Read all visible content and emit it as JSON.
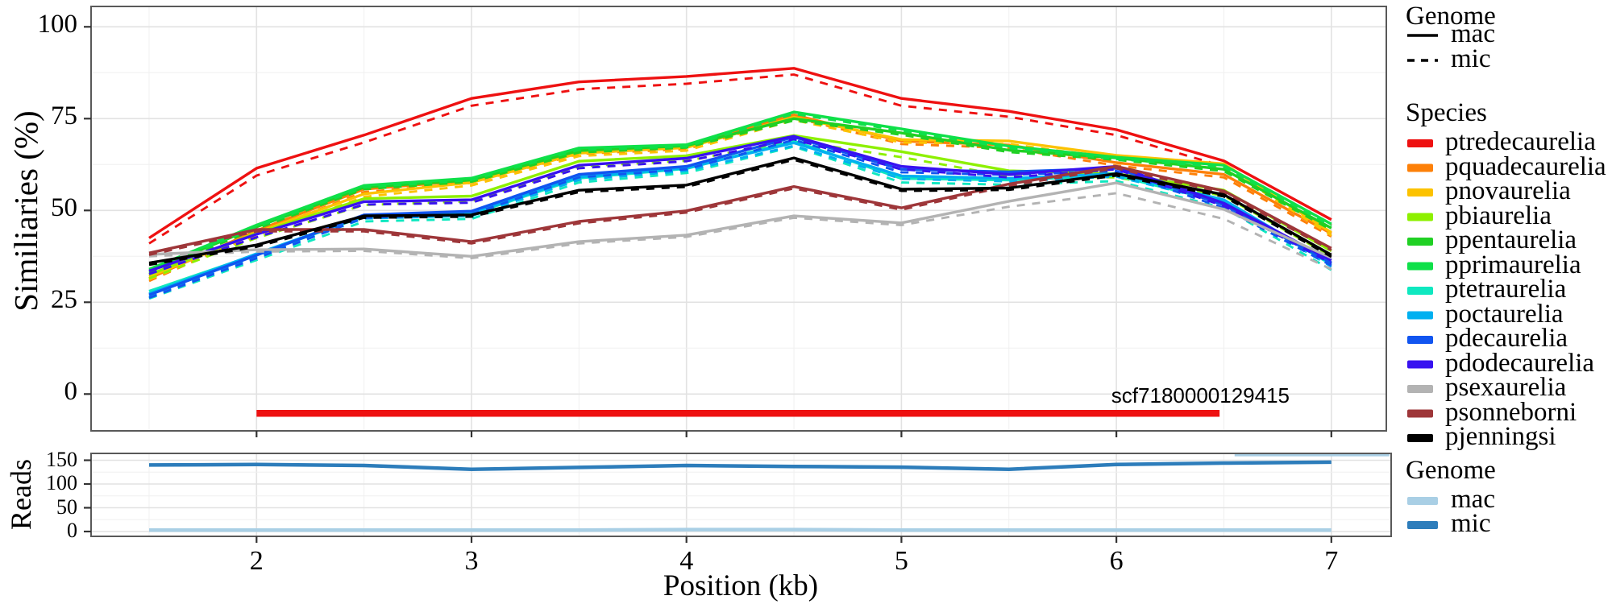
{
  "chart_data": [
    {
      "type": "line",
      "title": "",
      "ylabel": "Similiaries (%)",
      "xlabel": "Position (kb)",
      "x_ticks": [
        "2",
        "3",
        "4",
        "5",
        "6",
        "7"
      ],
      "y_ticks": [
        "0",
        "25",
        "50",
        "75",
        "100"
      ],
      "xlim": [
        1.23,
        7.26
      ],
      "ylim": [
        -9,
        105
      ],
      "grid": "major+minor",
      "legend_position": "right",
      "x": [
        1.5,
        2,
        2.5,
        3,
        3.5,
        4,
        4.5,
        5,
        5.5,
        6,
        6.5,
        7
      ],
      "series": [
        {
          "name": "ptredecaurelia",
          "color": "#ee1111",
          "mac": [
            42.5,
            61.5,
            70.5,
            80.5,
            85,
            86.5,
            88.7,
            80.5,
            77,
            72,
            63.5,
            47.5
          ],
          "mic": [
            41,
            59.5,
            68.5,
            78.5,
            83,
            84.5,
            87,
            78.5,
            75.5,
            70.5,
            62,
            46
          ]
        },
        {
          "name": "pquadecaurelia",
          "color": "#fd8008",
          "mac": [
            31.5,
            44.5,
            55.8,
            58.2,
            66.2,
            67.5,
            76,
            68.9,
            67.8,
            63,
            59.8,
            43.7
          ],
          "mic": [
            30.8,
            43.7,
            55,
            57.5,
            65.4,
            66.7,
            75.3,
            68.1,
            67,
            62.2,
            59,
            42.9
          ]
        },
        {
          "name": "pnovaurelia",
          "color": "#fcc200",
          "mac": [
            32,
            44,
            54.5,
            57.6,
            65.6,
            67.1,
            75.4,
            69.3,
            68.9,
            65,
            62.7,
            44
          ],
          "mic": [
            31.2,
            43.2,
            53.7,
            56.8,
            64.8,
            66.3,
            74.6,
            68.5,
            68.1,
            64.2,
            61.9,
            43.2
          ]
        },
        {
          "name": "pbiaurelia",
          "color": "#8df000",
          "mac": [
            32.5,
            43.8,
            53.2,
            53.9,
            63.4,
            64.9,
            70.4,
            66,
            60.8,
            60,
            55.5,
            39
          ],
          "mic": [
            31.5,
            42.5,
            51.5,
            52.5,
            62,
            63.5,
            69,
            64.5,
            59.3,
            59,
            54,
            37.5
          ]
        },
        {
          "name": "ppentaurelia",
          "color": "#20d024",
          "mac": [
            33.5,
            45.5,
            56.3,
            58.3,
            66.3,
            67.6,
            75,
            71.1,
            66.4,
            64.3,
            61.2,
            45.2
          ],
          "mic": [
            33,
            45,
            55.8,
            57.8,
            65.8,
            67.1,
            74.5,
            70.6,
            65.9,
            63.8,
            60.7,
            44.7
          ]
        },
        {
          "name": "pprimaurelia",
          "color": "#0fe049",
          "mac": [
            34,
            46,
            56.8,
            58.8,
            67,
            67.9,
            76.8,
            72.2,
            67.5,
            64.5,
            62.3,
            46.3
          ],
          "mic": [
            33.5,
            45.5,
            56.3,
            58.3,
            66.5,
            67.4,
            76.3,
            71.7,
            67,
            64,
            61.8,
            45.8
          ]
        },
        {
          "name": "ptetraurelia",
          "color": "#0fe8c0",
          "mac": [
            28,
            38,
            48.4,
            49,
            58.8,
            61.4,
            68.9,
            58.7,
            58.3,
            59.5,
            52.2,
            35.3
          ],
          "mic": [
            26,
            36.5,
            47,
            47.7,
            57.6,
            60.2,
            67.4,
            57.6,
            57,
            58,
            50.7,
            33.8
          ]
        },
        {
          "name": "poctaurelia",
          "color": "#00b0f0",
          "mac": [
            27.3,
            38.2,
            48.6,
            49.3,
            59.1,
            61.6,
            68.4,
            59.4,
            58.7,
            60,
            52.9,
            35.5
          ],
          "mic": [
            26.5,
            37.4,
            47.8,
            48.5,
            58.3,
            60.8,
            67.6,
            58.6,
            57.9,
            59.2,
            52.1,
            34.7
          ]
        },
        {
          "name": "pdecaurelia",
          "color": "#1155f0",
          "mac": [
            27,
            37.8,
            48.8,
            49.8,
            59.8,
            62,
            70,
            61.2,
            60.5,
            61.5,
            51.5,
            35.8
          ],
          "mic": [
            26.2,
            37,
            48,
            49,
            59,
            61.2,
            69.2,
            60.4,
            59.7,
            60.7,
            50.7,
            35
          ]
        },
        {
          "name": "pdodecaurelia",
          "color": "#3812f0",
          "mac": [
            33.5,
            43.5,
            52.4,
            52.9,
            62.3,
            64.2,
            70.2,
            62,
            59.8,
            62,
            52,
            36.4
          ],
          "mic": [
            32.7,
            42.7,
            51.6,
            52.1,
            61.5,
            63.4,
            69.4,
            61.2,
            59,
            61.2,
            51.2,
            35.6
          ]
        },
        {
          "name": "psexaurelia",
          "color": "#b3b3b3",
          "mac": [
            38,
            39.3,
            39.5,
            37.5,
            41.5,
            43.3,
            48.5,
            46.6,
            52.5,
            57.5,
            50.3,
            37.1
          ],
          "mic": [
            37.5,
            38.8,
            39,
            37,
            41,
            42.8,
            48,
            46,
            51,
            54.7,
            47.7,
            34
          ]
        },
        {
          "name": "psonneborni",
          "color": "#9e3639",
          "mac": [
            38.4,
            44.8,
            44.8,
            41.5,
            47,
            49.9,
            56.5,
            50.7,
            57.2,
            62,
            55.3,
            39.7
          ],
          "mic": [
            37.9,
            44.3,
            44.3,
            41,
            46.5,
            49.4,
            56,
            50.2,
            56.7,
            61.5,
            54.8,
            39.2
          ]
        },
        {
          "name": "pjenningsi",
          "color": "#000000",
          "mac": [
            35.7,
            40.6,
            48.5,
            48.8,
            55.5,
            56.9,
            64.3,
            55.8,
            56.1,
            60,
            54.3,
            37.9
          ],
          "mic": [
            35.2,
            40.1,
            48,
            48.3,
            55,
            56.4,
            63.8,
            55.3,
            55.6,
            59.5,
            53.8,
            37.4
          ]
        }
      ],
      "annotation": {
        "label": "scf7180000129415",
        "color": "#ee1111",
        "bar_x": [
          2.0,
          6.48
        ],
        "bar_y": -5
      }
    },
    {
      "type": "line",
      "ylabel": "Reads",
      "y_ticks": [
        "0",
        "50",
        "100",
        "150"
      ],
      "ylim": [
        0,
        165
      ],
      "x": [
        1.5,
        2,
        2.5,
        3,
        3.5,
        4,
        4.5,
        5,
        5.5,
        6,
        6.5,
        7
      ],
      "series": [
        {
          "name": "mic",
          "color": "#2d7dbb",
          "values": [
            140,
            141,
            139,
            131,
            135,
            139,
            137,
            135.5,
            131,
            141,
            144,
            146
          ]
        },
        {
          "name": "mac",
          "color": "#a9cfe5",
          "values": [
            3,
            3,
            3,
            3,
            3,
            4,
            4,
            3,
            3,
            3,
            3,
            3
          ]
        }
      ],
      "extra_segment": {
        "series": "mac",
        "x": [
          6.55,
          7.27
        ],
        "value": 162
      }
    }
  ],
  "legend_genome": {
    "title": "Genome",
    "items": [
      {
        "label": "mac",
        "style": "solid"
      },
      {
        "label": "mic",
        "style": "dashed"
      }
    ]
  },
  "legend_species": {
    "title": "Species"
  },
  "legend_reads": {
    "title": "Genome",
    "items": [
      {
        "label": "mac",
        "color": "#a9cfe5"
      },
      {
        "label": "mic",
        "color": "#2d7dbb"
      }
    ]
  }
}
